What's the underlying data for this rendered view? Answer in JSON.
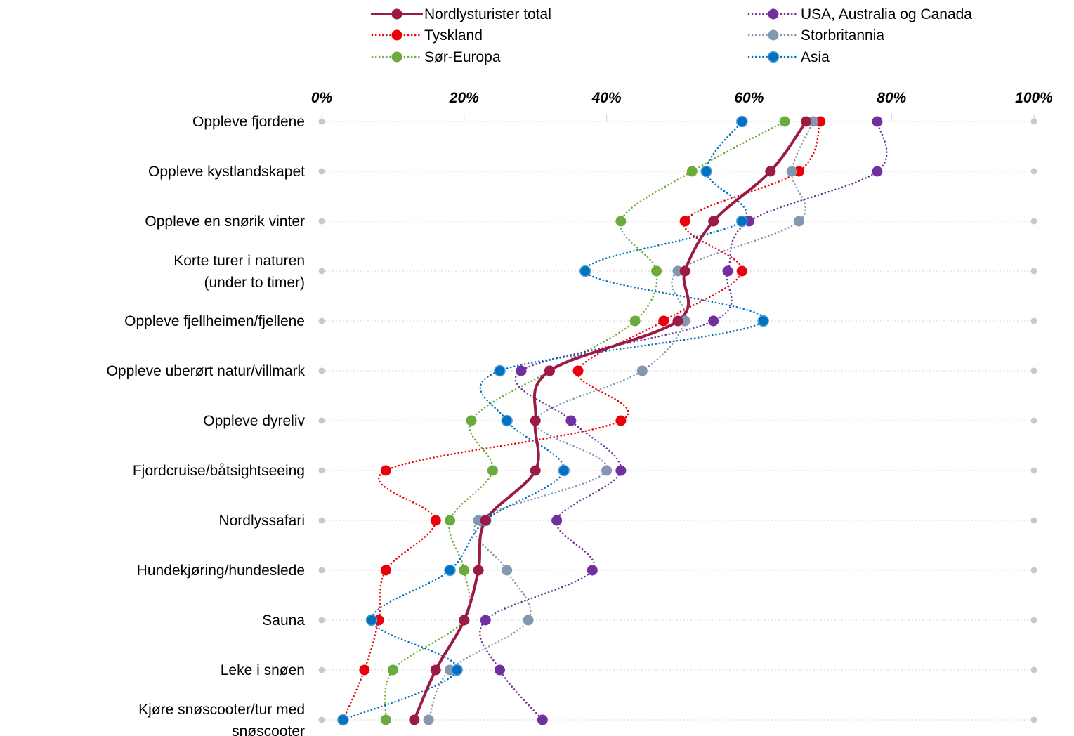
{
  "chart_data": {
    "type": "line",
    "orientation": "horizontal-values",
    "x_axis_position": "top",
    "xlim": [
      0,
      100
    ],
    "x_ticks": [
      "0%",
      "20%",
      "40%",
      "60%",
      "80%",
      "100%"
    ],
    "grid": true,
    "legend_position": "top",
    "categories": [
      "Oppleve fjordene",
      "Oppleve kystlandskapet",
      "Oppleve en snørik vinter",
      "Korte turer i naturen (under to timer)",
      "Oppleve fjellheimen/fjellene",
      "Oppleve uberørt natur/villmark",
      "Oppleve dyreliv",
      "Fjordcruise/båtsightseeing",
      "Nordlyssafari",
      "Hundekjøring/hundeslede",
      "Sauna",
      "Leke i snøen",
      "Kjøre snøscooter/tur med snøscooter"
    ],
    "series": [
      {
        "name": "Nordlysturister total",
        "color": "#9b1b45",
        "style": "solid-smooth",
        "values": [
          68,
          63,
          55,
          51,
          50,
          32,
          30,
          30,
          23,
          22,
          20,
          16,
          13
        ]
      },
      {
        "name": "Tyskland",
        "color": "#e8000b",
        "style": "dotted",
        "values": [
          70,
          67,
          51,
          59,
          48,
          36,
          42,
          9,
          16,
          9,
          8,
          6,
          3
        ]
      },
      {
        "name": "Sør-Europa",
        "color": "#6aab3c",
        "style": "dotted",
        "values": [
          65,
          52,
          42,
          47,
          44,
          32,
          21,
          24,
          18,
          20,
          20,
          10,
          9
        ]
      },
      {
        "name": "USA, Australia og Canada",
        "color": "#7030a0",
        "style": "dotted",
        "values": [
          78,
          78,
          60,
          57,
          55,
          28,
          35,
          42,
          33,
          38,
          23,
          25,
          31
        ]
      },
      {
        "name": "Storbritannia",
        "color": "#8497b0",
        "style": "dotted",
        "values": [
          69,
          66,
          67,
          50,
          51,
          45,
          30,
          40,
          22,
          26,
          29,
          18,
          15
        ]
      },
      {
        "name": "Asia",
        "color": "#0070c0",
        "style": "dotted",
        "values": [
          59,
          54,
          59,
          37,
          62,
          25,
          26,
          34,
          23,
          18,
          7,
          19,
          3
        ]
      }
    ]
  }
}
